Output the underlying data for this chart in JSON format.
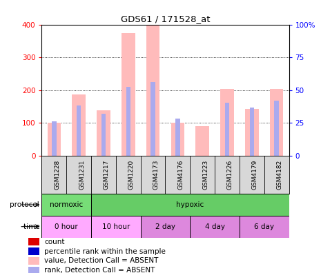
{
  "title": "GDS61 / 171528_at",
  "samples": [
    "GSM1228",
    "GSM1231",
    "GSM1217",
    "GSM1220",
    "GSM4173",
    "GSM4176",
    "GSM1223",
    "GSM1226",
    "GSM4179",
    "GSM4182"
  ],
  "values_absent": [
    100,
    187,
    138,
    375,
    397,
    100,
    90,
    203,
    143,
    203
  ],
  "ranks_absent": [
    105,
    152,
    127,
    210,
    225,
    112,
    null,
    162,
    147,
    167
  ],
  "ylim_left": [
    0,
    400
  ],
  "ylim_right": [
    0,
    100
  ],
  "yticks_left": [
    0,
    100,
    200,
    300,
    400
  ],
  "ytick_labels_right": [
    "0",
    "25",
    "50",
    "75",
    "100%"
  ],
  "color_value_absent": "#ffbbbb",
  "color_rank_absent": "#aaaaee",
  "color_count": "#dd0000",
  "color_rank": "#0000cc",
  "protocol_color_normoxic": "#77dd77",
  "protocol_color_hypoxic": "#66cc66",
  "time_colors": [
    "#ffaaff",
    "#ffaaff",
    "#dd88dd",
    "#dd88dd",
    "#dd88dd"
  ],
  "time_labels": [
    "0 hour",
    "10 hour",
    "2 day",
    "4 day",
    "6 day"
  ],
  "legend_items": [
    {
      "label": "count",
      "color": "#dd0000",
      "marker": "s"
    },
    {
      "label": "percentile rank within the sample",
      "color": "#0000cc",
      "marker": "s"
    },
    {
      "label": "value, Detection Call = ABSENT",
      "color": "#ffbbbb",
      "marker": "s"
    },
    {
      "label": "rank, Detection Call = ABSENT",
      "color": "#aaaaee",
      "marker": "s"
    }
  ]
}
